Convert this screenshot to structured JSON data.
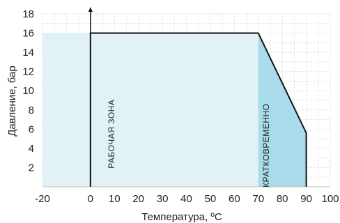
{
  "chart_data": {
    "type": "area",
    "title": "",
    "xlabel": "Температура, ºC",
    "ylabel": "Давление, бар",
    "xlim": [
      -20,
      100
    ],
    "ylim": [
      0,
      18
    ],
    "xticks": [
      -20,
      0,
      10,
      20,
      30,
      40,
      50,
      60,
      70,
      80,
      90,
      100
    ],
    "yticks": [
      2,
      4,
      6,
      8,
      10,
      12,
      14,
      16,
      18
    ],
    "grid": true,
    "regions": [
      {
        "label": "РАБОЧАЯ ЗОНА",
        "color": "#e1f2f6",
        "points": [
          [
            -20,
            0
          ],
          [
            -20,
            16
          ],
          [
            70,
            16
          ],
          [
            70,
            0
          ]
        ]
      },
      {
        "label": "КРАТКОВРЕМЕННО",
        "color": "#a9dcea",
        "points": [
          [
            70,
            0
          ],
          [
            70,
            16
          ],
          [
            90,
            5.6
          ],
          [
            90,
            0
          ]
        ]
      }
    ],
    "boundary_line": [
      [
        0,
        0
      ],
      [
        0,
        16
      ],
      [
        70,
        16
      ],
      [
        90,
        5.6
      ],
      [
        90,
        0
      ]
    ],
    "vertical_axis_at_x": 0
  }
}
